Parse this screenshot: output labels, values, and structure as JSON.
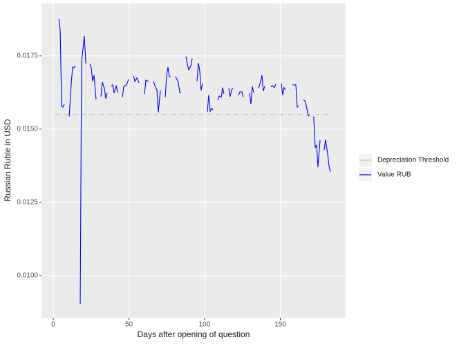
{
  "chart_data": {
    "type": "line",
    "x_label": "Days after opening of question",
    "y_label": "Russian Ruble in USD",
    "xlim": [
      -7.8,
      193.2
    ],
    "ylim": [
      0.00856,
      0.01929
    ],
    "xticks": [
      0,
      50,
      100,
      150
    ],
    "yticks": [
      {
        "value": 0.01,
        "label": "0.0100"
      },
      {
        "value": 0.0125,
        "label": "0.0125"
      },
      {
        "value": 0.015,
        "label": "0.0150"
      },
      {
        "value": 0.0175,
        "label": "0.0175"
      }
    ],
    "grid": true,
    "legend": "right",
    "series": [
      {
        "name": "Depreciation Threshold",
        "color": "#bfbfbf",
        "dashed": true,
        "x": [
          1,
          183
        ],
        "values": [
          0.0155,
          0.0155
        ]
      },
      {
        "name": "Value RUB",
        "color": "#0000ff",
        "dashed": false,
        "x": [
          3.7,
          4.6,
          5.5,
          6.4,
          7.3,
          9,
          10.5,
          11.9,
          12.8,
          13.7,
          14.6,
          16,
          17.8,
          18.7,
          20.5,
          21.5,
          23,
          24.2,
          25.1,
          26.0,
          26.9,
          28.3,
          30,
          31.5,
          32.4,
          33.8,
          34.7,
          35.6,
          37,
          38.4,
          39.3,
          40.2,
          41.6,
          42.5,
          44,
          45.7,
          46.6,
          48.4,
          49.8,
          51,
          53.0,
          53.9,
          55.3,
          56.6,
          58,
          60.3,
          61.2,
          63.0,
          65,
          66.2,
          67.6,
          68.5,
          69.4,
          70.8,
          72,
          74.0,
          74.9,
          75.8,
          76.7,
          77.6,
          79,
          80.8,
          81.7,
          82.6,
          83.6,
          84.5,
          86,
          87.7,
          88.6,
          89.5,
          90.9,
          91.8,
          93,
          95.0,
          95.9,
          96.8,
          97.7,
          98.6,
          100,
          101.8,
          102.7,
          103.7,
          104.6,
          105.5,
          107,
          108.7,
          109.6,
          111.0,
          111.9,
          112.8,
          114,
          116.0,
          116.9,
          117.8,
          118.7,
          120,
          122.4,
          123.3,
          124.7,
          125.6,
          128,
          129.7,
          130.6,
          131.5,
          132.4,
          134,
          135.6,
          136.5,
          137.9,
          138.8,
          139.7,
          142,
          143.8,
          144.7,
          146.1,
          147.0,
          149,
          150.7,
          151.6,
          152.5,
          153.4,
          156,
          158.0,
          159.4,
          160.3,
          161.2,
          162.1,
          164,
          165.3,
          166.2,
          167.1,
          168.5,
          169.4,
          171,
          172.1,
          173.1,
          174.0,
          174.9,
          176.3,
          178,
          179.0,
          179.9,
          181.3,
          182.2,
          183.1
        ],
        "values": [
          0.01877,
          0.01835,
          0.01578,
          0.01575,
          0.01585,
          null,
          0.01543,
          0.01658,
          0.01712,
          0.0171,
          0.01715,
          null,
          0.00903,
          0.01729,
          0.01818,
          0.01724,
          null,
          0.01722,
          0.0171,
          0.01663,
          0.01684,
          0.01601,
          null,
          0.01611,
          0.0166,
          0.01639,
          0.01604,
          0.01623,
          null,
          0.01646,
          0.01651,
          0.01623,
          0.01649,
          0.01625,
          null,
          0.01609,
          0.01646,
          0.01651,
          0.0167,
          null,
          0.01682,
          0.01663,
          0.01675,
          0.01658,
          null,
          0.0162,
          0.01667,
          0.01663,
          null,
          0.01663,
          0.01642,
          0.01634,
          0.01557,
          0.01632,
          null,
          0.01609,
          0.01682,
          0.01712,
          0.01679,
          0.01679,
          null,
          0.01679,
          0.0167,
          0.0166,
          0.01625,
          0.01625,
          null,
          0.01748,
          0.01722,
          0.01703,
          0.01715,
          0.01741,
          null,
          0.01663,
          0.01726,
          0.01698,
          0.01632,
          0.01656,
          null,
          0.01559,
          0.01616,
          0.01561,
          0.01571,
          0.01566,
          null,
          0.01599,
          0.01613,
          0.01609,
          0.01642,
          0.0162,
          null,
          0.01639,
          0.01611,
          0.01634,
          0.01639,
          null,
          0.01616,
          0.01627,
          0.01627,
          0.01609,
          null,
          0.01623,
          0.01585,
          0.01646,
          0.01625,
          null,
          0.01639,
          0.01653,
          0.01684,
          0.0163,
          0.01646,
          null,
          0.01644,
          0.01649,
          0.01642,
          0.01653,
          null,
          0.01656,
          0.01616,
          0.01642,
          0.01634,
          null,
          0.01651,
          0.01651,
          0.01651,
          0.01575,
          0.01578,
          null,
          0.01599,
          0.01597,
          0.01583,
          0.01545,
          0.01547,
          null,
          0.01543,
          0.01436,
          0.01446,
          0.0137,
          0.01462,
          null,
          0.01429,
          0.01464,
          0.01417,
          0.01375,
          0.01354
        ]
      }
    ]
  }
}
